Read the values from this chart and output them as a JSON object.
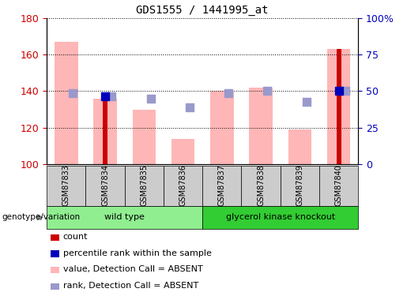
{
  "title": "GDS1555 / 1441995_at",
  "samples": [
    "GSM87833",
    "GSM87834",
    "GSM87835",
    "GSM87836",
    "GSM87837",
    "GSM87838",
    "GSM87839",
    "GSM87840"
  ],
  "value_bars": [
    167,
    136,
    130,
    114,
    140,
    142,
    119,
    163
  ],
  "count_bars": [
    null,
    136,
    null,
    null,
    null,
    null,
    null,
    163
  ],
  "rank_dots": [
    139,
    137,
    136,
    131,
    139,
    140,
    134,
    140
  ],
  "percentile_dots": [
    null,
    137,
    null,
    null,
    null,
    null,
    null,
    140
  ],
  "ylim_left": [
    100,
    180
  ],
  "ylim_right": [
    0,
    100
  ],
  "yticks_left": [
    100,
    120,
    140,
    160,
    180
  ],
  "ytick_labels_right": [
    "0",
    "25",
    "50",
    "75",
    "100%"
  ],
  "groups": [
    {
      "label": "wild type",
      "color": "#90EE90",
      "start": 0,
      "end": 4
    },
    {
      "label": "glycerol kinase knockout",
      "color": "#32CD32",
      "start": 4,
      "end": 8
    }
  ],
  "bar_color_pink": "#FFB6B6",
  "bar_color_red": "#CC0000",
  "dot_color_blue_dark": "#0000BB",
  "dot_color_blue_light": "#9999CC",
  "pink_bar_width": 0.6,
  "red_bar_width": 0.12,
  "rank_dot_size": 45,
  "grid_color": "#000000",
  "tick_label_color_left": "#CC0000",
  "tick_label_color_right": "#0000BB",
  "legend_items": [
    {
      "label": "count",
      "color": "#CC0000"
    },
    {
      "label": "percentile rank within the sample",
      "color": "#0000BB"
    },
    {
      "label": "value, Detection Call = ABSENT",
      "color": "#FFB6B6"
    },
    {
      "label": "rank, Detection Call = ABSENT",
      "color": "#9999CC"
    }
  ],
  "genotype_label": "genotype/variation",
  "sample_bg_color": "#CCCCCC"
}
